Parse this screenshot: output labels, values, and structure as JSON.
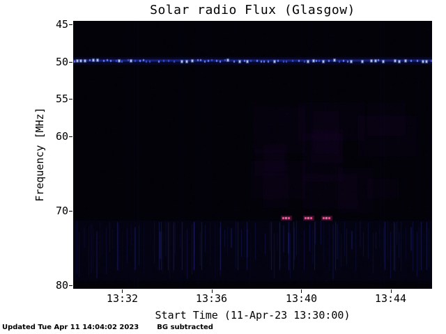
{
  "chart_data": {
    "type": "heatmap",
    "title": "Solar radio Flux (Glasgow)",
    "xlabel": "Start Time (11-Apr-23 13:30:00)",
    "ylabel": "Frequency [MHz]",
    "x_tick_labels": [
      "13:32",
      "13:36",
      "13:40",
      "13:44"
    ],
    "x_start": "13:30:00",
    "x_tick_interval_min": 4,
    "y_tick_labels": [
      "45",
      "50",
      "55",
      "60",
      "70",
      "80"
    ],
    "y_tick_values": [
      45,
      50,
      55,
      60,
      70,
      80
    ],
    "y_range": [
      45,
      80
    ],
    "y_axis_direction": "frequency increases downward",
    "background_color": "#020208",
    "features": {
      "interference_band": {
        "frequency_mhz": 49.8,
        "color": "#3a50e0",
        "style": "persistent dotted blue horizontal band across full time range"
      },
      "bursts": {
        "frequency_mhz": 71,
        "color": "#ff4f9e",
        "times": [
          "13:39:20",
          "13:40:20",
          "13:41:10"
        ],
        "style": "short dashed pink segments"
      },
      "noise_streaks": {
        "frequency_range_mhz": [
          71.3,
          79.5
        ],
        "color": "#23238c",
        "style": "faint vertical blue streaks along bottom band"
      }
    }
  },
  "footer": {
    "updated": "Updated Tue Apr 11 14:04:02 2023",
    "note": "BG subtracted"
  }
}
